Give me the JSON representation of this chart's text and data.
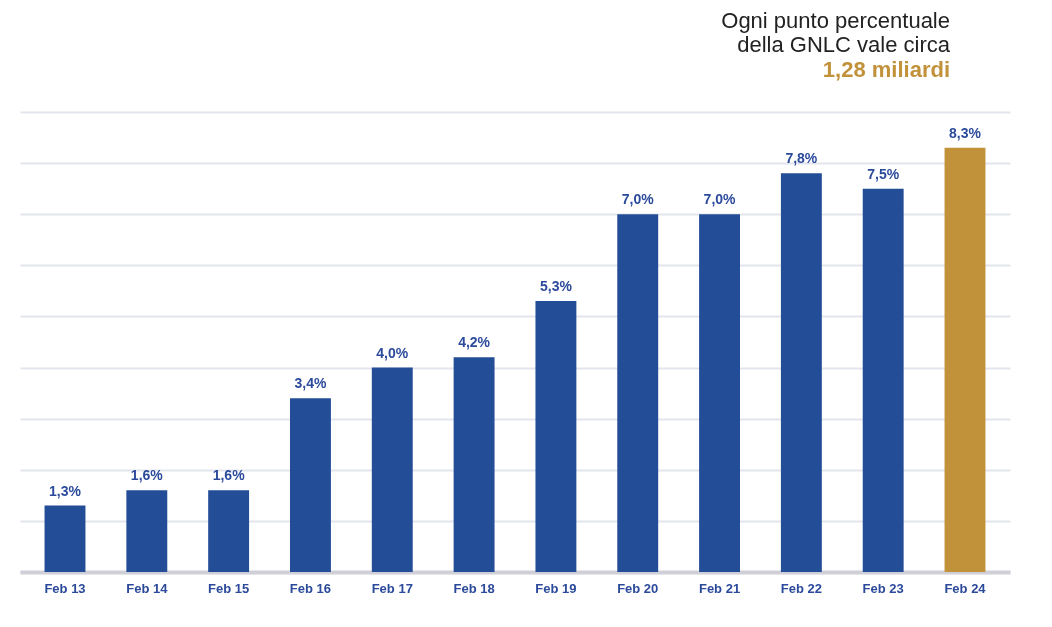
{
  "chart_data": {
    "type": "bar",
    "title": "Ogni punto percentuale\ndella GNLC vale circa",
    "subtitle": "1,28 miliardi",
    "categories": [
      "Feb 13",
      "Feb 14",
      "Feb 15",
      "Feb 16",
      "Feb 17",
      "Feb 18",
      "Feb 19",
      "Feb 20",
      "Feb 21",
      "Feb 22",
      "Feb 23",
      "Feb 24"
    ],
    "values": [
      1.3,
      1.6,
      1.6,
      3.4,
      4.0,
      4.2,
      5.3,
      7.0,
      7.0,
      7.8,
      7.5,
      8.3
    ],
    "value_labels": [
      "1,3%",
      "1,6%",
      "1,6%",
      "3,4%",
      "4,0%",
      "4,2%",
      "5,3%",
      "7,0%",
      "7,0%",
      "7,8%",
      "7,5%",
      "8,3%"
    ],
    "colors": [
      "#234d96",
      "#234d96",
      "#234d96",
      "#234d96",
      "#234d96",
      "#234d96",
      "#234d96",
      "#234d96",
      "#234d96",
      "#234d96",
      "#234d96",
      "#c1923a"
    ],
    "ylim": [
      0,
      9
    ],
    "yticks": [
      {
        "value": 0,
        "label": null
      },
      {
        "value": 1,
        "label": null
      },
      {
        "value": 2,
        "label": null
      },
      {
        "value": 3,
        "label": null
      },
      {
        "value": 4,
        "label": null
      },
      {
        "value": 5,
        "label": null
      },
      {
        "value": 6,
        "label": null
      },
      {
        "value": 7,
        "label": null
      },
      {
        "value": 8,
        "label": null
      },
      {
        "value": 9,
        "label": null
      }
    ],
    "tick_labels": "x",
    "grid": "y"
  }
}
